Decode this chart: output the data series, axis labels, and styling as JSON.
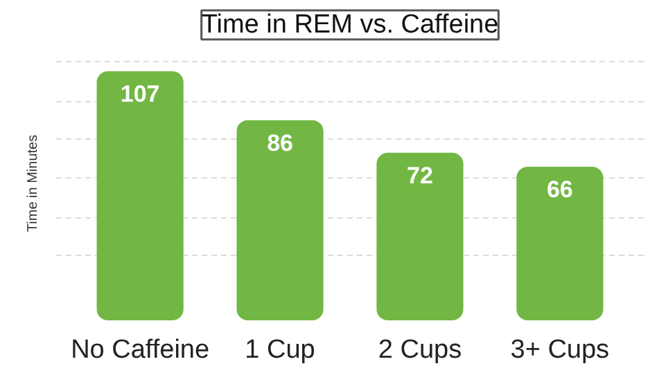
{
  "chart_data": {
    "type": "bar",
    "title": "Time in REM vs. Caffeine",
    "ylabel": "Time in Minutes",
    "categories": [
      "No Caffeine",
      "1 Cup",
      "2 Cups",
      "3+ Cups"
    ],
    "values": [
      107,
      86,
      72,
      66
    ],
    "color": "#72b744",
    "data_labels": true,
    "yticks": [
      {
        "value": 28,
        "label": null
      },
      {
        "value": 44,
        "label": null
      },
      {
        "value": 61,
        "label": null
      },
      {
        "value": 78,
        "label": null
      },
      {
        "value": 94,
        "label": null
      },
      {
        "value": 111,
        "label": null
      }
    ],
    "grid": "y",
    "tick_labels": "x"
  }
}
